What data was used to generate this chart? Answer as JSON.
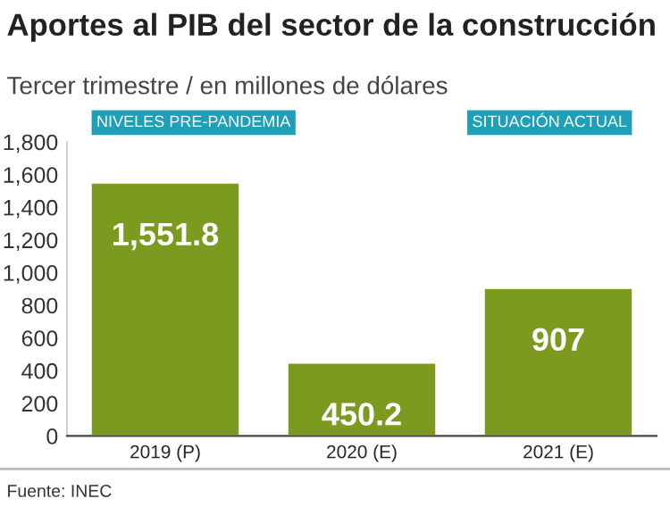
{
  "chart_data": {
    "type": "bar",
    "title": "Aportes al PIB del sector de la construcción",
    "subtitle": "Tercer trimestre / en millones de dólares",
    "categories": [
      "2019 (P)",
      "2020 (E)",
      "2021 (E)"
    ],
    "values": [
      1551.8,
      450.2,
      907
    ],
    "value_labels": [
      "1,551.8",
      "450.2",
      "907"
    ],
    "color": "#7b9a1f",
    "ylim": [
      0,
      1800
    ],
    "yticks": [
      0,
      200,
      400,
      600,
      800,
      {
        "value": 1000,
        "label": "1,000"
      },
      {
        "value": 1200,
        "label": "1,200"
      },
      {
        "value": 1400,
        "label": "1,400"
      },
      {
        "value": 1600,
        "label": "1,600"
      },
      {
        "value": 1800,
        "label": "1,800"
      }
    ],
    "grid": false,
    "annotations": [
      "NIVELES PRE-PANDEMIA",
      "SITUACIÓN ACTUAL",
      "Fuente: INEC"
    ]
  }
}
